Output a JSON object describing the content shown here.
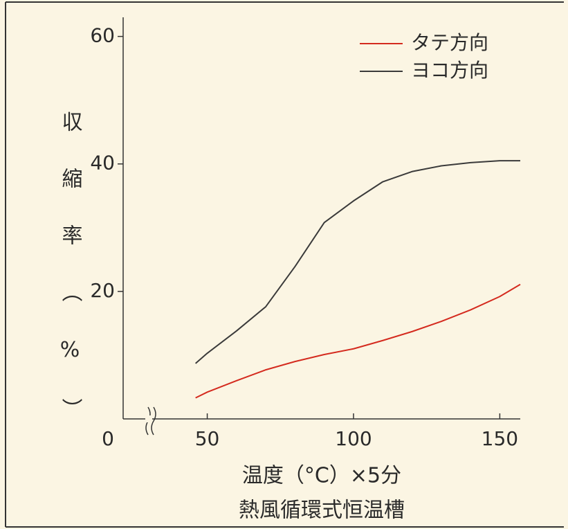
{
  "chart_data": {
    "type": "line",
    "x_label": "温度（°C）×5分",
    "caption": "熱風循環式恒温槽",
    "y_label": "収縮率（%）",
    "x": [
      46,
      50,
      60,
      70,
      80,
      90,
      100,
      110,
      120,
      130,
      140,
      150,
      157
    ],
    "series": [
      {
        "name": "タテ方向",
        "color": "#d42a1e",
        "values": [
          3.3,
          4.2,
          6.0,
          7.7,
          9.0,
          10.1,
          11.0,
          12.3,
          13.7,
          15.3,
          17.1,
          19.2,
          21.1
        ]
      },
      {
        "name": "ヨコ方向",
        "color": "#3a3a3a",
        "values": [
          8.7,
          10.3,
          13.8,
          17.6,
          23.9,
          30.8,
          34.2,
          37.2,
          38.8,
          39.7,
          40.2,
          40.5,
          40.5
        ]
      }
    ],
    "xlim": [
      30,
      157
    ],
    "xticks": [
      0,
      50,
      100,
      150
    ],
    "axis_break": true,
    "ylim": [
      0,
      63
    ],
    "yticks": [
      20,
      40,
      60
    ],
    "legend": "upper right",
    "grid": false
  }
}
